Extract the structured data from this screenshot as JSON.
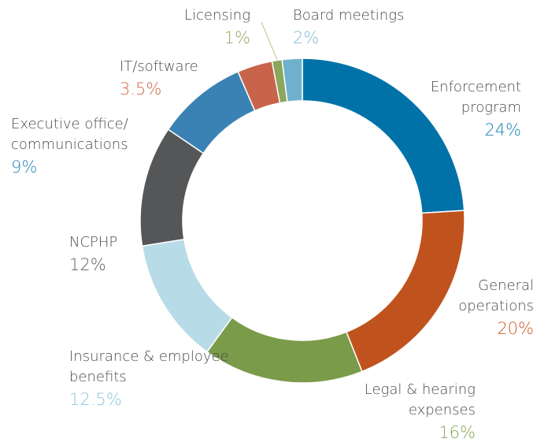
{
  "chart_data": {
    "type": "donut",
    "categories": [
      "Enforcement program",
      "General operations",
      "Legal & hearing expenses",
      "Insurance & employee benefits",
      "NCPHP",
      "Executive office/ communications",
      "IT/software",
      "Licensing",
      "Board meetings"
    ],
    "values": [
      24,
      20,
      16,
      12.5,
      12,
      9,
      3.5,
      1,
      2
    ],
    "value_labels": [
      "24%",
      "20%",
      "16%",
      "12.5%",
      "12%",
      "9%",
      "3.5%",
      "1%",
      "2%"
    ],
    "colors": [
      "#0072a7",
      "#c0531d",
      "#7a9b49",
      "#b8dce7",
      "#545658",
      "#3a82b3",
      "#c8644b",
      "#8ba65d",
      "#6fb1cc"
    ],
    "label_colors": [
      "#1a84b5",
      "#c8602c",
      "#86a552",
      "#8cc5da",
      "#606264",
      "#2f86b8",
      "#cf6a4c",
      "#8fa85f",
      "#7fbcd6"
    ]
  }
}
